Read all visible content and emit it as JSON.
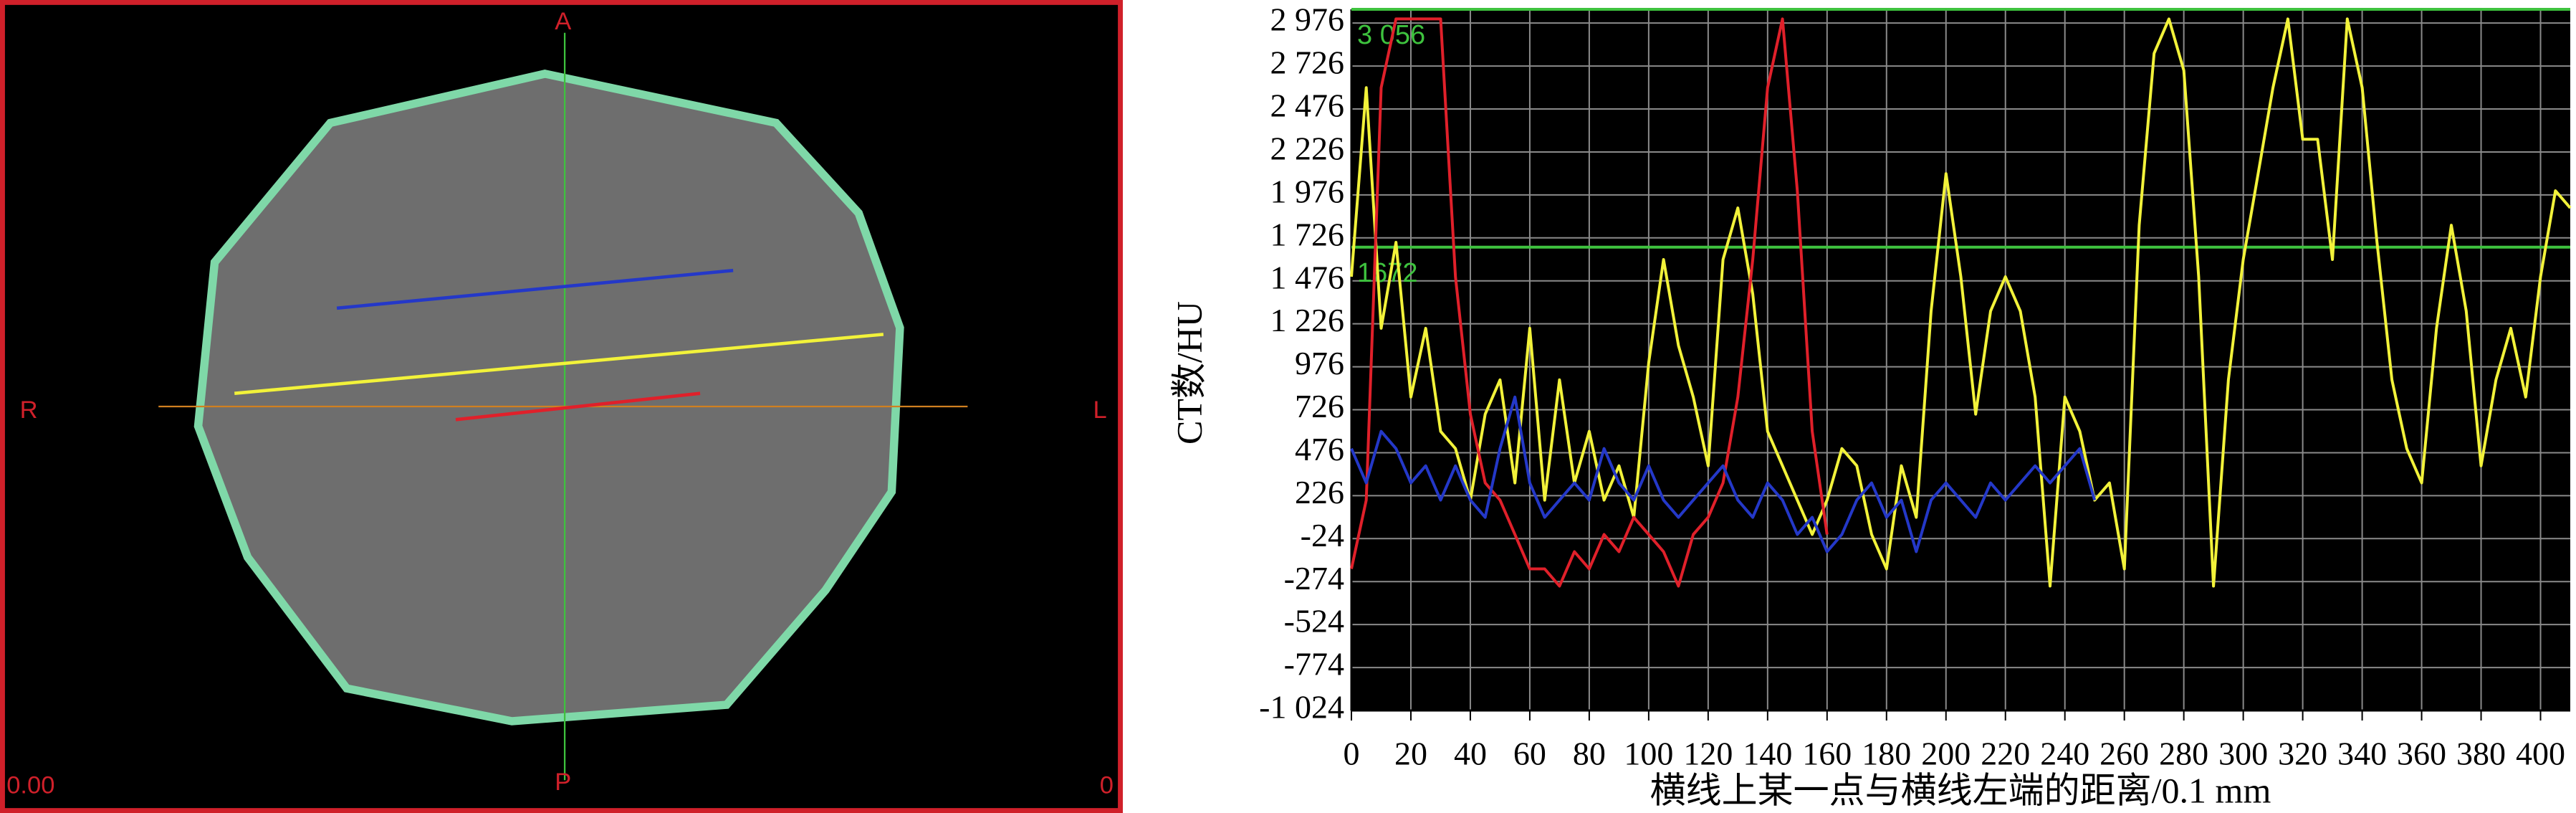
{
  "ct_image": {
    "top": "A",
    "bottom": "P",
    "left": "R",
    "right": "L",
    "bottom_left": "0.00",
    "bottom_right": "0"
  },
  "chart_data": {
    "type": "line",
    "y_label": "CT数/HU",
    "x_label": "横线上某一点与横线左端的距离/0.1 mm",
    "x": [
      0,
      5,
      10,
      15,
      20,
      25,
      30,
      35,
      40,
      45,
      50,
      55,
      60,
      65,
      70,
      75,
      80,
      85,
      90,
      95,
      100,
      105,
      110,
      115,
      120,
      125,
      130,
      135,
      140,
      145,
      150,
      155,
      160,
      165,
      170,
      175,
      180,
      185,
      190,
      195,
      200,
      205,
      210,
      215,
      220,
      225,
      230,
      235,
      240,
      245,
      250,
      255,
      260,
      265,
      270,
      275,
      280,
      285,
      290,
      295,
      300,
      305,
      310,
      315,
      320,
      325,
      330,
      335,
      340,
      345,
      350,
      355,
      360,
      365,
      370,
      375,
      380,
      385,
      390,
      395,
      400,
      405,
      410
    ],
    "series": [
      {
        "name": "yellow",
        "color": "#f2f23a",
        "values": [
          1500,
          2600,
          1200,
          1700,
          800,
          1200,
          600,
          500,
          200,
          700,
          900,
          300,
          1200,
          200,
          900,
          300,
          600,
          200,
          400,
          100,
          1000,
          1600,
          1100,
          800,
          400,
          1600,
          1900,
          1400,
          600,
          400,
          200,
          0,
          200,
          500,
          400,
          0,
          -200,
          400,
          100,
          1300,
          2100,
          1500,
          700,
          1300,
          1500,
          1300,
          800,
          -300,
          800,
          600,
          200,
          300,
          -200,
          1800,
          2800,
          3000,
          2700,
          1500,
          -300,
          900,
          1600,
          2100,
          2600,
          3000,
          2300,
          2300,
          1600,
          3000,
          2600,
          1700,
          900,
          500,
          300,
          1200,
          1800,
          1300,
          400,
          900,
          1200,
          800,
          1500,
          2000,
          1900
        ]
      },
      {
        "name": "red",
        "color": "#e0202a",
        "values": [
          -200,
          200,
          2600,
          3000,
          3000,
          3000,
          3000,
          1500,
          700,
          300,
          200,
          0,
          -200,
          -200,
          -300,
          -100,
          -200,
          0,
          -100,
          100,
          0,
          -100,
          -300,
          0,
          100,
          300,
          800,
          1600,
          2600,
          3000,
          2000,
          600,
          0,
          null,
          null,
          null,
          null,
          null,
          null,
          null,
          null,
          null,
          null,
          null,
          null,
          null,
          null,
          null,
          null,
          null,
          null,
          null,
          null,
          null,
          null,
          null,
          null,
          null,
          null,
          null,
          null,
          null,
          null,
          null,
          null,
          null,
          null,
          null,
          null,
          null,
          null,
          null,
          null,
          null,
          null,
          null,
          null,
          null,
          null,
          null,
          null,
          null,
          null
        ]
      },
      {
        "name": "blue",
        "color": "#2438c8",
        "values": [
          500,
          300,
          600,
          500,
          300,
          400,
          200,
          400,
          200,
          100,
          500,
          800,
          300,
          100,
          200,
          300,
          200,
          500,
          300,
          200,
          400,
          200,
          100,
          200,
          300,
          400,
          200,
          100,
          300,
          200,
          0,
          100,
          -100,
          0,
          200,
          300,
          100,
          200,
          -100,
          200,
          300,
          200,
          100,
          300,
          200,
          300,
          400,
          300,
          400,
          500,
          200,
          null,
          null,
          null,
          null,
          null,
          null,
          null,
          null,
          null,
          null,
          null,
          null,
          null,
          null,
          null,
          null,
          null,
          null,
          null,
          null,
          null,
          null,
          null,
          null,
          null,
          null,
          null,
          null,
          null,
          null,
          null,
          null
        ]
      }
    ],
    "reference_lines": [
      {
        "value": 3056,
        "label": "3 056"
      },
      {
        "value": 1672,
        "label": "1672"
      }
    ],
    "reference_color": "#3ec23e",
    "xlim": [
      0,
      410
    ],
    "xticks": [
      0,
      20,
      40,
      60,
      80,
      100,
      120,
      140,
      160,
      180,
      200,
      220,
      240,
      260,
      280,
      300,
      320,
      340,
      360,
      380,
      400
    ],
    "ylim": [
      -1024,
      3056
    ],
    "yticks": [
      {
        "value": -1024,
        "label": "-1 024"
      },
      -774,
      -524,
      -274,
      -24,
      226,
      476,
      726,
      976,
      {
        "value": 1226,
        "label": "1 226"
      },
      {
        "value": 1476,
        "label": "1 476"
      },
      {
        "value": 1726,
        "label": "1 726"
      },
      {
        "value": 1976,
        "label": "1 976"
      },
      {
        "value": 2226,
        "label": "2 226"
      },
      {
        "value": 2476,
        "label": "2 476"
      },
      {
        "value": 2726,
        "label": "2 726"
      },
      {
        "value": 2976,
        "label": "2 976"
      }
    ],
    "grid": true
  }
}
